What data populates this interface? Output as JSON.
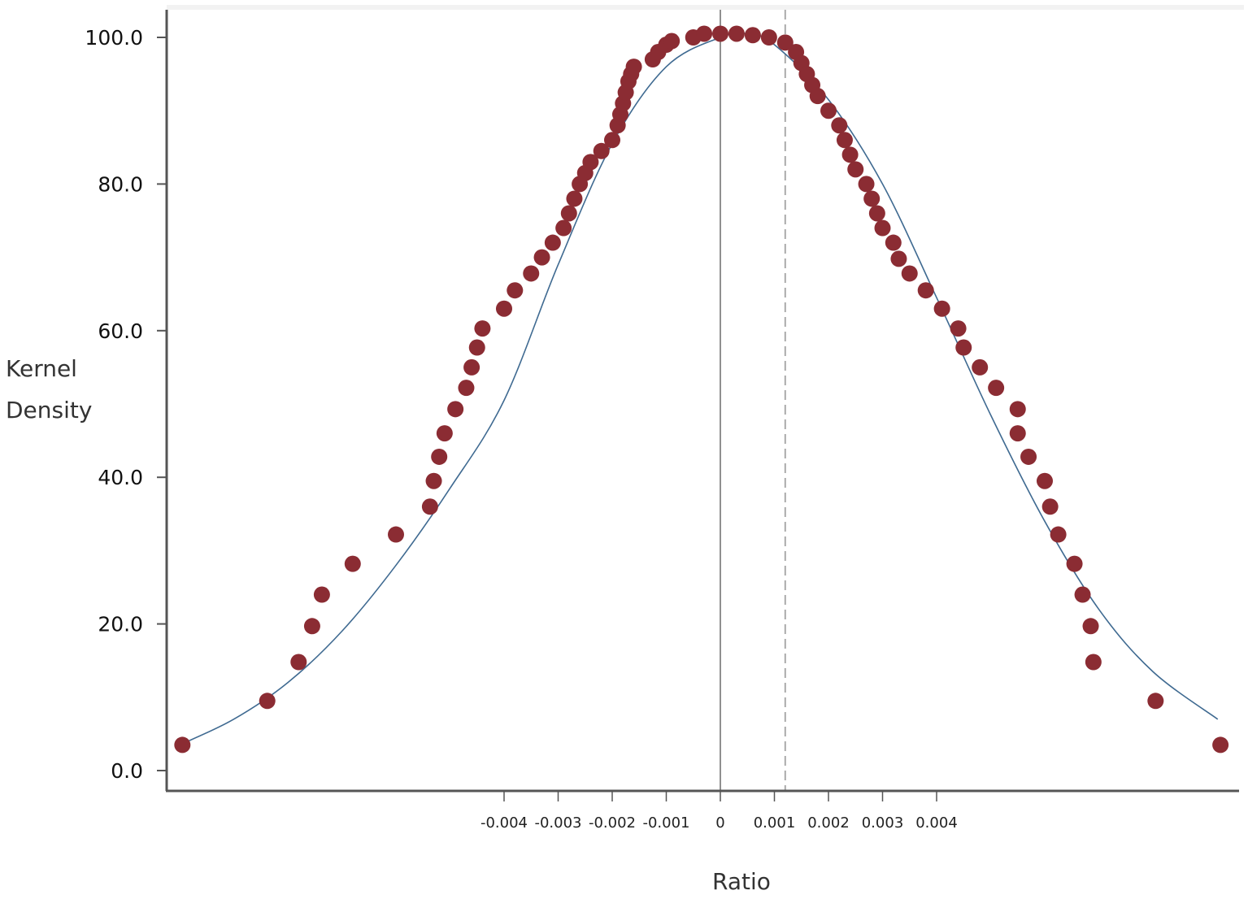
{
  "chart_data": {
    "type": "scatter",
    "title": "",
    "xlabel": "Ratio",
    "ylabel_lines": [
      "Kernel",
      "Density"
    ],
    "ylim": [
      0,
      100
    ],
    "y_ticks": [
      "0.0",
      "20.0",
      "40.0",
      "60.0",
      "80.0",
      "100.0"
    ],
    "y_tick_values": [
      0,
      20,
      40,
      60,
      80,
      100
    ],
    "x_ticks": [
      "-0.004",
      "-0.003",
      "-0.002",
      "-0.001",
      "0",
      "0.001",
      "0.002",
      "0.003",
      "0.004"
    ],
    "x_tick_values": [
      -0.004,
      -0.003,
      -0.002,
      -0.001,
      0,
      0.001,
      0.002,
      0.003,
      0.004
    ],
    "xlim": [
      -0.01,
      0.0092
    ],
    "reference_lines": [
      {
        "x": 0,
        "style": "solid"
      },
      {
        "x": 0.0012,
        "style": "dashed"
      }
    ],
    "colors": {
      "points": "#8b2c33",
      "curve": "#3f6a91",
      "axis": "#555555",
      "ref_line": "#555555",
      "dashed_line": "#aaaaaa"
    },
    "curve": {
      "name": "",
      "x": [
        -0.01,
        -0.009,
        -0.008,
        -0.007,
        -0.006,
        -0.005,
        -0.004,
        -0.003,
        -0.002,
        -0.001,
        0.0,
        0.0005,
        0.001,
        0.002,
        0.003,
        0.004,
        0.005,
        0.006,
        0.007,
        0.008,
        0.0092
      ],
      "y": [
        3.5,
        7.0,
        12.0,
        19.0,
        28.0,
        38.5,
        50.5,
        69.0,
        85.5,
        96.0,
        100.0,
        100.5,
        99.0,
        91.5,
        80.0,
        64.5,
        48.5,
        34.0,
        22.0,
        13.5,
        7.0
      ]
    },
    "series": [
      {
        "name": "",
        "x": [
          -0.00995,
          -0.00838,
          -0.0078,
          -0.00755,
          -0.00737,
          -0.0068,
          -0.006,
          -0.00537,
          -0.0053,
          -0.0052,
          -0.0051,
          -0.0049,
          -0.0047,
          -0.0046,
          -0.0045,
          -0.0044,
          -0.004,
          -0.0038,
          -0.0035,
          -0.0033,
          -0.0031,
          -0.0029,
          -0.0028,
          -0.0027,
          -0.0026,
          -0.0025,
          -0.0024,
          -0.0022,
          -0.002,
          -0.0019,
          -0.00185,
          -0.0018,
          -0.00175,
          -0.0017,
          -0.00165,
          -0.0016,
          -0.00125,
          -0.00115,
          -0.001,
          -0.0009,
          -0.0005,
          -0.0003,
          0.0,
          0.0003,
          0.0006,
          0.0009,
          0.0012,
          0.0014,
          0.0015,
          0.0016,
          0.0017,
          0.0018,
          0.002,
          0.0022,
          0.0023,
          0.0024,
          0.0025,
          0.0027,
          0.0028,
          0.0029,
          0.003,
          0.0032,
          0.0033,
          0.0035,
          0.0038,
          0.0041,
          0.0044,
          0.0045,
          0.0048,
          0.0051,
          0.0055,
          0.0055,
          0.0057,
          0.006,
          0.0061,
          0.00625,
          0.00655,
          0.0067,
          0.00685,
          0.0069,
          0.00805,
          0.00925
        ],
        "y": [
          3.5,
          9.5,
          14.8,
          19.7,
          24.0,
          28.2,
          32.2,
          36.0,
          39.5,
          42.8,
          46.0,
          49.3,
          52.2,
          55.0,
          57.7,
          60.3,
          63.0,
          65.5,
          67.8,
          70.0,
          72.0,
          74.0,
          76.0,
          78.0,
          80.0,
          81.5,
          83.0,
          84.5,
          86.0,
          88.0,
          89.5,
          91.0,
          92.5,
          94.0,
          95.0,
          96.0,
          97.0,
          98.0,
          99.0,
          99.5,
          100.0,
          100.5,
          100.5,
          100.5,
          100.3,
          100.0,
          99.3,
          98.0,
          96.5,
          95.0,
          93.5,
          92.0,
          90.0,
          88.0,
          86.0,
          84.0,
          82.0,
          80.0,
          78.0,
          76.0,
          74.0,
          72.0,
          69.8,
          67.8,
          65.5,
          63.0,
          60.3,
          57.7,
          55.0,
          52.2,
          49.3,
          46.0,
          42.8,
          39.5,
          36.0,
          32.2,
          28.2,
          24.0,
          19.7,
          14.8,
          9.5,
          3.5
        ]
      }
    ]
  }
}
